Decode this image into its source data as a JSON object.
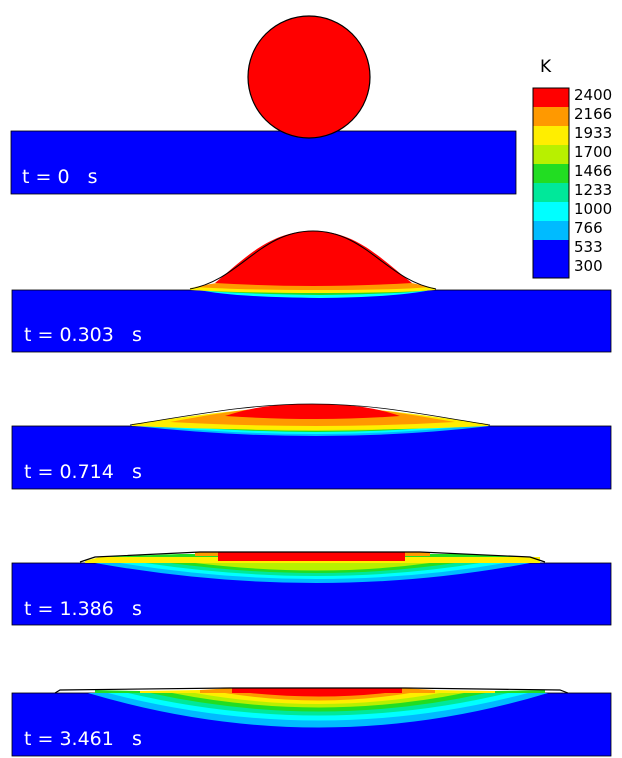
{
  "colorbar": {
    "unit": "K",
    "levels": [
      "2400",
      "2166",
      "1933",
      "1700",
      "1466",
      "1233",
      "1000",
      "766",
      "533",
      "300"
    ],
    "colors": [
      "#ff0000",
      "#ff9900",
      "#ffee00",
      "#b8f000",
      "#22dd22",
      "#00e89a",
      "#00ffff",
      "#00bbff",
      "#0000ff",
      "#0000ff"
    ]
  },
  "panels": [
    {
      "label": "t = 0   s"
    },
    {
      "label": "t = 0.303   s"
    },
    {
      "label": "t = 0.714   s"
    },
    {
      "label": "t = 1.386   s"
    },
    {
      "label": "t = 3.461   s"
    }
  ]
}
